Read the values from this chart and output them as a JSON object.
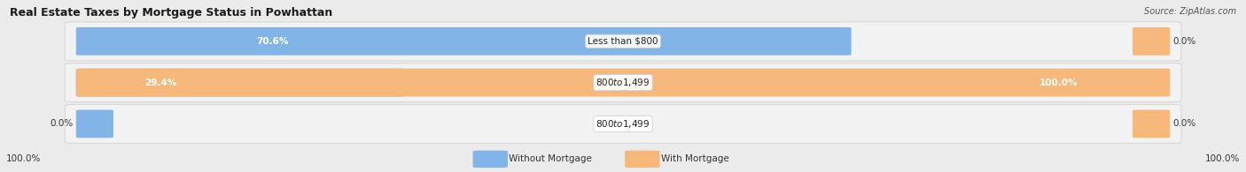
{
  "title": "Real Estate Taxes by Mortgage Status in Powhattan",
  "source": "Source: ZipAtlas.com",
  "rows": [
    {
      "blue_val": 70.6,
      "orange_val": 0.0,
      "label": "Less than $800",
      "left_label": "70.6%",
      "right_label": "0.0%"
    },
    {
      "blue_val": 29.4,
      "orange_val": 100.0,
      "label": "$800 to $1,499",
      "left_label": "29.4%",
      "right_label": "100.0%"
    },
    {
      "blue_val": 0.0,
      "orange_val": 0.0,
      "label": "$800 to $1,499",
      "left_label": "0.0%",
      "right_label": "0.0%"
    }
  ],
  "left_axis_label": "100.0%",
  "right_axis_label": "100.0%",
  "legend_without": "Without Mortgage",
  "legend_with": "With Mortgage",
  "blue_color": "#82b4e8",
  "orange_color": "#f5b87a",
  "bg_color": "#ebebeb",
  "row_bg_color": "#f2f2f2",
  "row_border_color": "#d8d8d8"
}
